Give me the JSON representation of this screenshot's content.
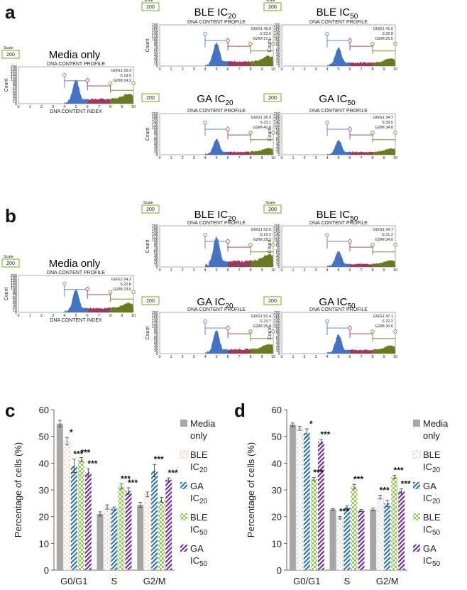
{
  "panels": {
    "a": "a",
    "b": "b",
    "c": "c",
    "d": "d"
  },
  "histogram_common": {
    "scale_label": "Scale",
    "scale_value": "200",
    "profile_title": "DNA CONTENT PROFILE",
    "x_axis_label": "DNA CONTENT INDEX",
    "y_axis_label": "Count",
    "x_ticks": [
      "0",
      "1",
      "2",
      "3",
      "4",
      "5",
      "6",
      "7",
      "8",
      "9",
      "10"
    ],
    "y_ticks": [
      "0",
      "10",
      "20",
      "30",
      "40",
      "50",
      "60",
      "70",
      "80",
      "90",
      "100",
      "120",
      "140",
      "160",
      "180",
      "200"
    ],
    "colors": {
      "g1": "#4472c4",
      "s": "#9b3a5c",
      "g2": "#6b7a1f",
      "line_g1": "#5b8bd6",
      "line_s": "#b04a74",
      "line_g2": "#8a8a28"
    }
  },
  "histograms": {
    "a": [
      {
        "title": "Media only",
        "g0g1": "G0/G1 55.9",
        "s": "S 19.9",
        "g2m": "G2/M 24.2"
      },
      {
        "title": "BLE IC20",
        "g0g1": "G0/G1 49.8",
        "s": "S 23.0",
        "g2m": "G2/M 27.1"
      },
      {
        "title": "BLE IC50",
        "g0g1": "G0/G1 41.6",
        "s": "S 32.8",
        "g2m": "G2/M 25.5"
      },
      {
        "title": "GA IC20",
        "g0g1": "G0/G1 36.9",
        "s": "S 23.1",
        "g2m": "G2/M 40.0"
      },
      {
        "title": "GA IC50",
        "g0g1": "G0/G1 34.7",
        "s": "S 30.5",
        "g2m": "G2/M 34.8"
      }
    ],
    "b": [
      {
        "title": "Media only",
        "g0g1": "G0/G1 54.2",
        "s": "S 22.8",
        "g2m": "G2/M 23.0"
      },
      {
        "title": "BLE IC20",
        "g0g1": "G0/G1 52.6",
        "s": "S 19.2",
        "g2m": "G2/M 28.2"
      },
      {
        "title": "BLE IC50",
        "g0g1": "G0/G1 34.7",
        "s": "S 31.2",
        "g2m": "G2/M 34.0"
      },
      {
        "title": "GA IC20",
        "g0g1": "G0/G1 50.4",
        "s": "S 23.7",
        "g2m": "G2/M 25.9"
      },
      {
        "title": "GA IC50",
        "g0g1": "G0/G1 47.1",
        "s": "S 22.2",
        "g2m": "G2/M 30.6"
      }
    ]
  },
  "chart_data": [
    {
      "panel": "c",
      "type": "bar",
      "ylabel": "Percentage of cells (%)",
      "xlabel": "",
      "ylim": [
        0,
        60
      ],
      "yticks": [
        "0",
        "10",
        "20",
        "30",
        "40",
        "50",
        "60"
      ],
      "categories": [
        "G0/G1",
        "S",
        "G2/M"
      ],
      "series": [
        {
          "name": "Media only",
          "label_l1": "Media",
          "label_l2": "only",
          "values": [
            54.8,
            21.0,
            24.4
          ],
          "errors": [
            1.2,
            0.8,
            0.9
          ],
          "color": "#a6a6a6",
          "pattern": "solid"
        },
        {
          "name": "BLE IC20",
          "label_l1": "BLE",
          "label_l2": "IC20",
          "values": [
            48.2,
            23.6,
            28.3
          ],
          "errors": [
            1.4,
            0.8,
            0.9
          ],
          "color": "#f4b183",
          "pattern": "dots"
        },
        {
          "name": "GA IC20",
          "label_l1": "GA",
          "label_l2": "IC20",
          "values": [
            39.0,
            23.0,
            37.2
          ],
          "errors": [
            2.5,
            0.6,
            2.3
          ],
          "color": "#2e75b6",
          "pattern": "diag"
        },
        {
          "name": "BLE IC50",
          "label_l1": "BLE",
          "label_l2": "IC50",
          "values": [
            41.3,
            31.3,
            26.3
          ],
          "errors": [
            0.8,
            1.0,
            0.9
          ],
          "color": "#92d050",
          "pattern": "check"
        },
        {
          "name": "GA IC50",
          "label_l1": "GA",
          "label_l2": "IC50",
          "values": [
            36.5,
            29.6,
            33.8
          ],
          "errors": [
            1.4,
            1.2,
            0.7
          ],
          "color": "#7030a0",
          "pattern": "diag"
        }
      ],
      "stars": [
        {
          "cat": 0,
          "series": 1,
          "text": "*"
        },
        {
          "cat": 0,
          "series": 2,
          "text": "***"
        },
        {
          "cat": 0,
          "series": 3,
          "text": "***"
        },
        {
          "cat": 0,
          "series": 4,
          "text": "***"
        },
        {
          "cat": 1,
          "series": 3,
          "text": "***"
        },
        {
          "cat": 1,
          "series": 4,
          "text": "***"
        },
        {
          "cat": 2,
          "series": 2,
          "text": "***"
        },
        {
          "cat": 2,
          "series": 4,
          "text": "***"
        }
      ]
    },
    {
      "panel": "d",
      "type": "bar",
      "ylabel": "Percentage of cells (%)",
      "xlabel": "",
      "ylim": [
        0,
        60
      ],
      "yticks": [
        "0",
        "10",
        "20",
        "30",
        "40",
        "50",
        "60"
      ],
      "categories": [
        "G0/G1",
        "S",
        "G2/M"
      ],
      "series": [
        {
          "name": "Media only",
          "label_l1": "Media",
          "label_l2": "only",
          "values": [
            54.4,
            22.7,
            22.7
          ],
          "errors": [
            0.6,
            0.3,
            0.5
          ],
          "color": "#a6a6a6",
          "pattern": "solid"
        },
        {
          "name": "BLE IC20",
          "label_l1": "BLE",
          "label_l2": "IC20",
          "values": [
            53.0,
            19.6,
            27.3
          ],
          "errors": [
            0.7,
            0.5,
            0.7
          ],
          "color": "#bfbfbf",
          "pattern": "dots"
        },
        {
          "name": "GA IC20",
          "label_l1": "GA",
          "label_l2": "IC20",
          "values": [
            51.3,
            23.5,
            25.0
          ],
          "errors": [
            1.5,
            0.5,
            1.2
          ],
          "color": "#2e75b6",
          "pattern": "diag"
        },
        {
          "name": "BLE IC50",
          "label_l1": "BLE",
          "label_l2": "IC50",
          "values": [
            34.0,
            31.2,
            34.8
          ],
          "errors": [
            0.6,
            0.9,
            0.6
          ],
          "color": "#92d050",
          "pattern": "check"
        },
        {
          "name": "GA IC50",
          "label_l1": "GA",
          "label_l2": "IC50",
          "values": [
            48.0,
            22.3,
            29.5
          ],
          "errors": [
            0.8,
            0.4,
            0.9
          ],
          "color": "#7030a0",
          "pattern": "diag"
        }
      ],
      "stars": [
        {
          "cat": 0,
          "series": 2,
          "text": "*"
        },
        {
          "cat": 0,
          "series": 3,
          "text": "***"
        },
        {
          "cat": 0,
          "series": 4,
          "text": "***"
        },
        {
          "cat": 1,
          "series": 1,
          "text": "***"
        },
        {
          "cat": 1,
          "series": 3,
          "text": "***"
        },
        {
          "cat": 2,
          "series": 1,
          "text": "***"
        },
        {
          "cat": 2,
          "series": 3,
          "text": "***"
        },
        {
          "cat": 2,
          "series": 4,
          "text": "***"
        }
      ]
    }
  ]
}
